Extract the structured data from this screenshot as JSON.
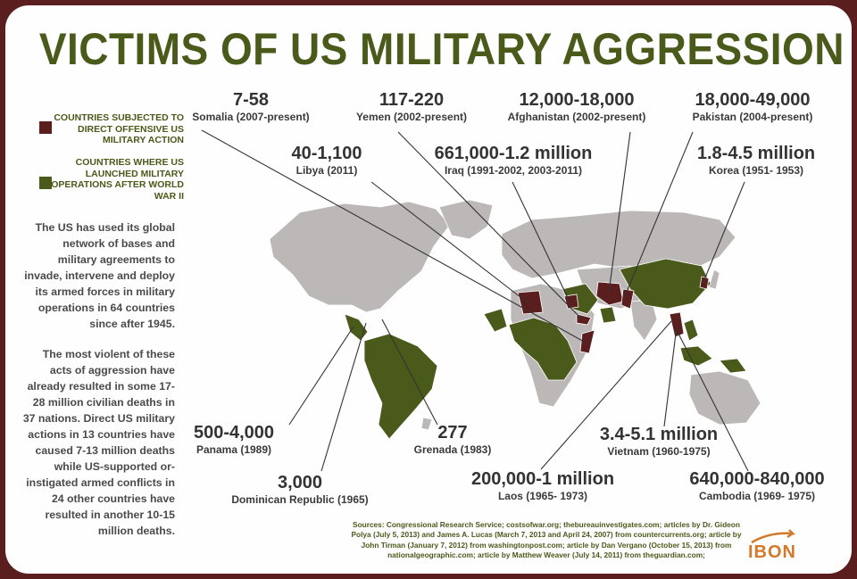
{
  "title": "VICTIMS OF US MILITARY AGGRESSION",
  "colors": {
    "direct_action": "#5a1e1e",
    "post_ww2_operations": "#4a5a1a",
    "other_land": "#bdb8b8",
    "title": "#4a5a1a",
    "logo": "#d27a2a"
  },
  "legend": [
    {
      "label": "COUNTRIES SUBJECTED TO DIRECT OFFENSIVE US MILITARY ACTION",
      "color": "#5a1e1e"
    },
    {
      "label": "COUNTRIES WHERE US LAUNCHED MILITARY OPERATIONS AFTER WORLD WAR II",
      "color": "#4a5a1a"
    }
  ],
  "body_text_1": "The US has used its global network of bases and military agreements to invade, intervene and deploy its armed forces in military operations in 64 countries since after 1945.",
  "body_text_2": "The most violent of these acts of aggression have already resulted in some 17-28 million civilian deaths in 37 nations. Direct US military actions in 13 countries have caused 7-13 million deaths while US-supported or-instigated armed conflicts in 24 other countries have resulted in another 10-15 million deaths.",
  "callouts": [
    {
      "id": "somalia",
      "deaths": "7-58",
      "country": "Somalia (2007-present)"
    },
    {
      "id": "yemen",
      "deaths": "117-220",
      "country": "Yemen (2002-present)"
    },
    {
      "id": "afghanistan",
      "deaths": "12,000-18,000",
      "country": "Afghanistan (2002-present)"
    },
    {
      "id": "pakistan",
      "deaths": "18,000-49,000",
      "country": "Pakistan (2004-present)"
    },
    {
      "id": "libya",
      "deaths": "40-1,100",
      "country": "Libya (2011)"
    },
    {
      "id": "iraq",
      "deaths": "661,000-1.2 million",
      "country": "Iraq (1991-2002, 2003-2011)"
    },
    {
      "id": "korea",
      "deaths": "1.8-4.5 million",
      "country": "Korea (1951- 1953)"
    },
    {
      "id": "panama",
      "deaths": "500-4,000",
      "country": "Panama (1989)"
    },
    {
      "id": "grenada",
      "deaths": "277",
      "country": "Grenada (1983)"
    },
    {
      "id": "dominican",
      "deaths": "3,000",
      "country": "Dominican Republic (1965)"
    },
    {
      "id": "vietnam",
      "deaths": "3.4-5.1 million",
      "country": "Vietnam (1960-1975)"
    },
    {
      "id": "laos",
      "deaths": "200,000-1 million",
      "country": "Laos (1965- 1973)"
    },
    {
      "id": "cambodia",
      "deaths": "640,000-840,000",
      "country": "Cambodia (1969- 1975)"
    }
  ],
  "sources": "Sources: Congressional Research Service; costsofwar.org; thebureauinvestigates.com; articles by Dr. Gideon Polya (July 5, 2013) and James A. Lucas (March 7, 2013 and April 24, 2007) from countercurrents.org; article by John Tirman (January 7, 2012) from washingtonpost.com; article by Dan Vergano (October 15, 2013) from nationalgeographic.com; article by Matthew Weaver (July 14, 2011) from theguardian.com;",
  "logo": "IBON"
}
